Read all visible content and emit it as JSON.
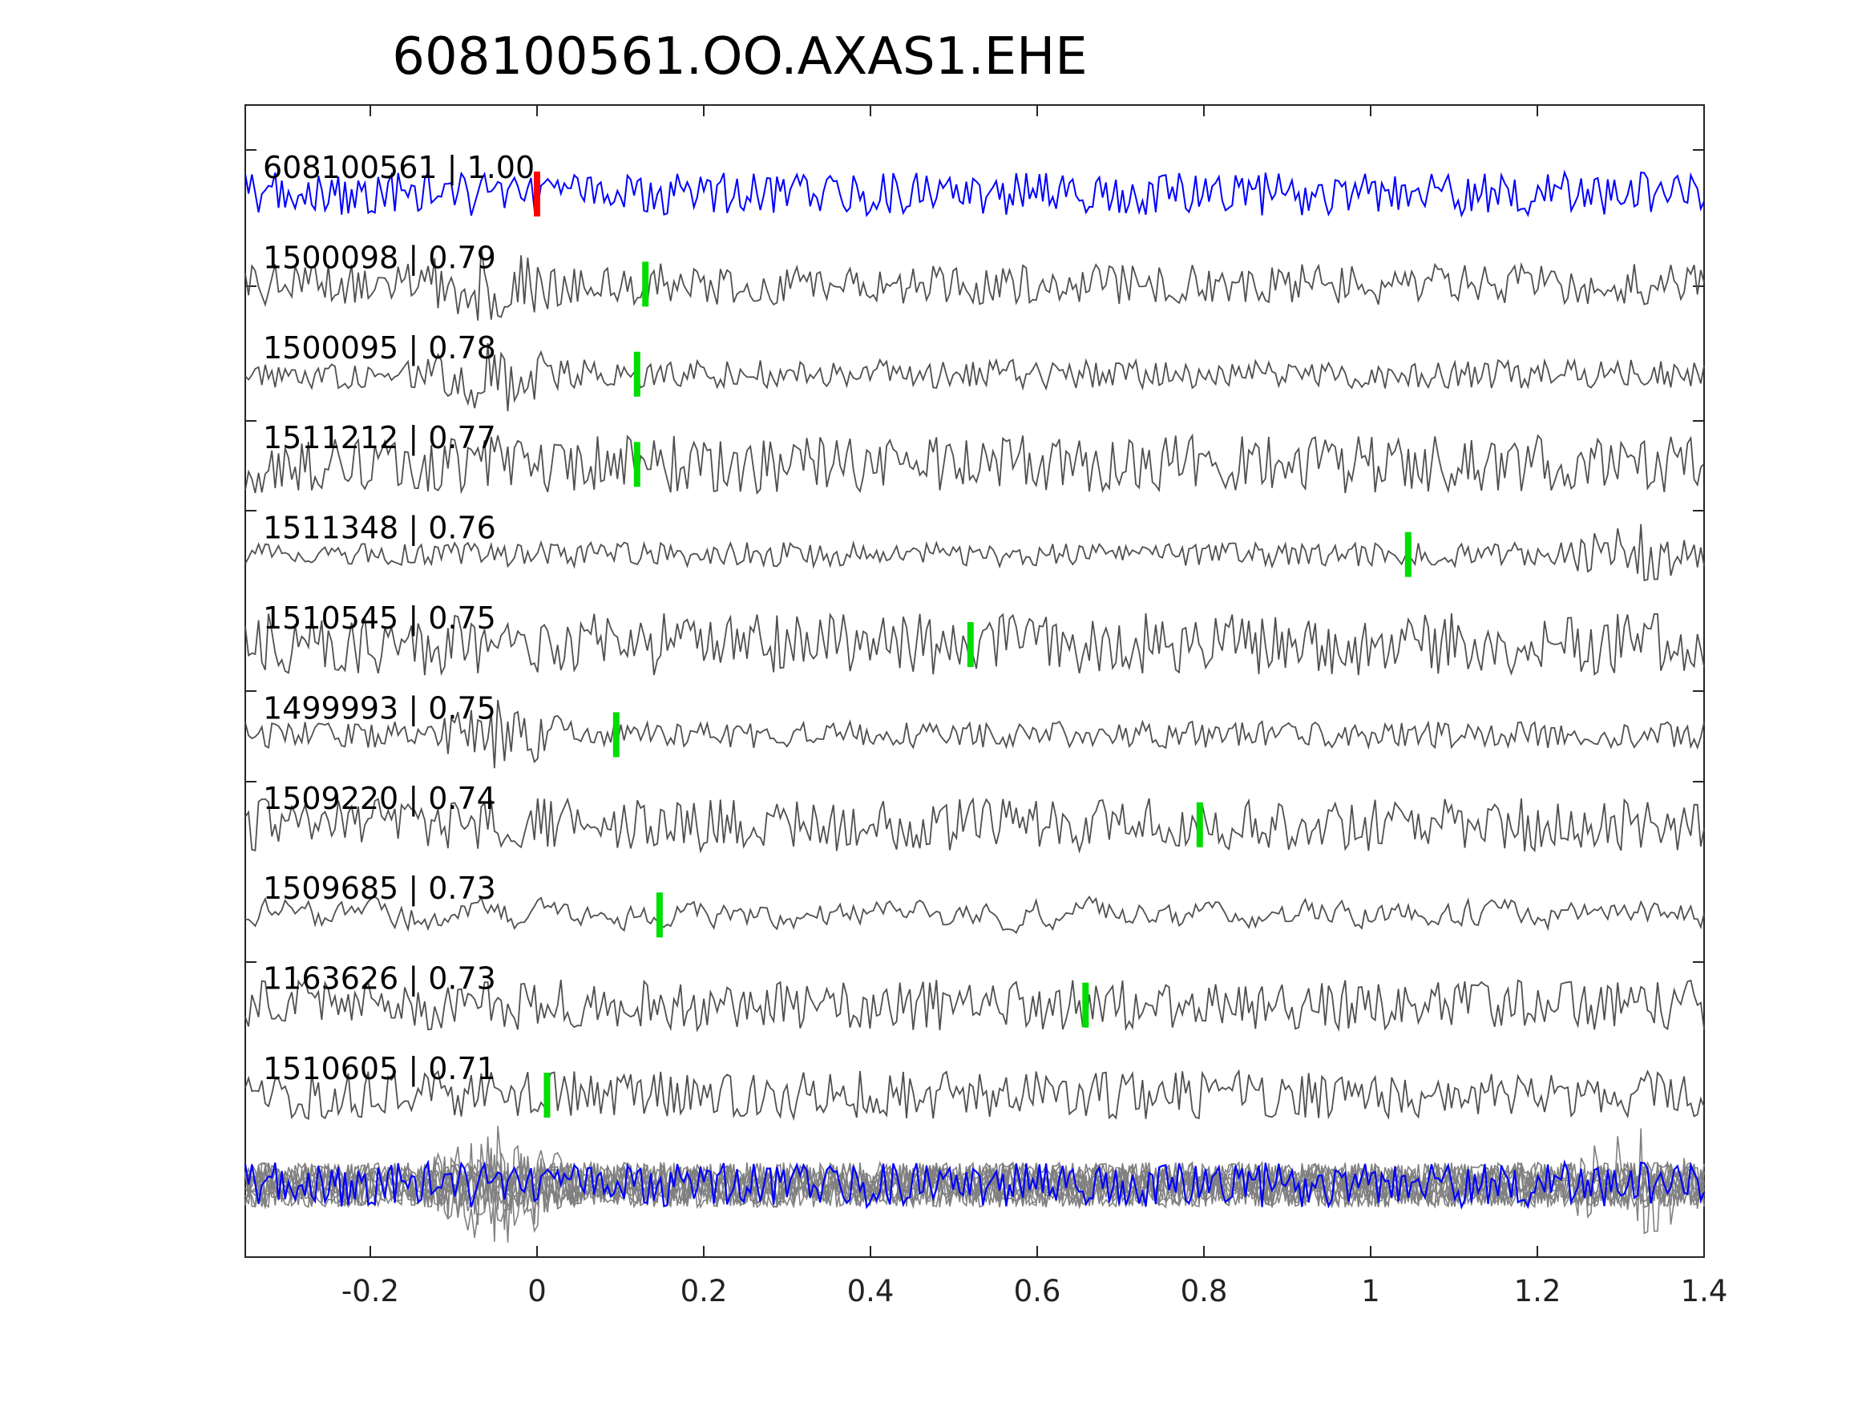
{
  "chart_data": {
    "type": "line",
    "title": "608100561.OO.AXAS1.EHE",
    "xlabel": "",
    "ylabel": "",
    "xlim": [
      -0.35,
      1.4
    ],
    "xticks": [
      -0.2,
      0,
      0.2,
      0.4,
      0.6,
      0.8,
      1,
      1.2,
      1.4
    ],
    "xtick_labels": [
      "-0.2",
      "0",
      "0.2",
      "0.4",
      "0.6",
      "0.8",
      "1",
      "1.2",
      "1.4"
    ],
    "grid": false,
    "colors": {
      "template": "#0000ff",
      "match": "#505050",
      "stack": "#808080",
      "template_pick": "#ff0000",
      "match_pick": "#00dd00",
      "axes": "#262626"
    },
    "series": [
      {
        "label": "608100561 | 1.00",
        "pick": 0.0,
        "amp": 0.9,
        "seed": 11,
        "role": "template"
      },
      {
        "label": "1500098 | 0.79",
        "pick": 0.13,
        "amp": 0.85,
        "seed": 23,
        "burst": [
          -0.15,
          0.05,
          2.0
        ]
      },
      {
        "label": "1500095 | 0.78",
        "pick": 0.12,
        "amp": 0.6,
        "seed": 37,
        "burst": [
          -0.15,
          0.05,
          3.0
        ]
      },
      {
        "label": "1511212 | 0.77",
        "pick": 0.12,
        "amp": 1.2,
        "seed": 41
      },
      {
        "label": "1511348 | 0.76",
        "pick": 1.045,
        "amp": 0.5,
        "seed": 53,
        "burst": [
          1.23,
          1.4,
          3.0
        ]
      },
      {
        "label": "1510545 | 0.75",
        "pick": 0.52,
        "amp": 1.3,
        "seed": 67
      },
      {
        "label": "1499993 | 0.75",
        "pick": 0.095,
        "amp": 0.55,
        "seed": 71,
        "burst": [
          -0.13,
          0.05,
          3.0
        ]
      },
      {
        "label": "1509220 | 0.74",
        "pick": 0.795,
        "amp": 1.1,
        "seed": 83
      },
      {
        "label": "1509685 | 0.73",
        "pick": 0.147,
        "amp": 1.0,
        "seed": 97,
        "smooth": 0.5
      },
      {
        "label": "1163626 | 0.73",
        "pick": 0.658,
        "amp": 1.05,
        "seed": 101
      },
      {
        "label": "1510605 | 0.71",
        "pick": 0.012,
        "amp": 1.0,
        "seed": 113
      }
    ]
  }
}
